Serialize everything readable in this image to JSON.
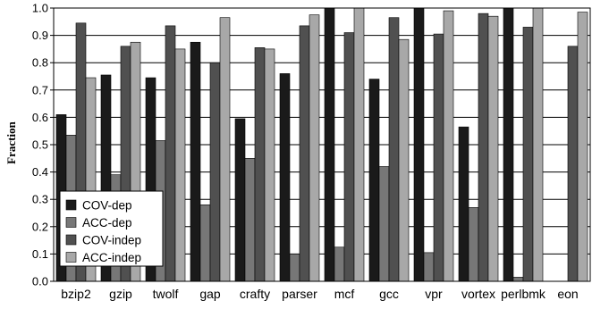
{
  "chart_data": {
    "type": "bar",
    "title": "",
    "xlabel": "",
    "ylabel": "Fraction",
    "ylim": [
      0,
      1
    ],
    "yticks": [
      "0.0",
      "0.1",
      "0.2",
      "0.3",
      "0.4",
      "0.5",
      "0.6",
      "0.7",
      "0.8",
      "0.9",
      "1.0"
    ],
    "grid": true,
    "legend_position": "bottom-left",
    "categories": [
      "bzip2",
      "gzip",
      "twolf",
      "gap",
      "crafty",
      "parser",
      "mcf",
      "gcc",
      "vpr",
      "vortex",
      "perlbmk",
      "eon"
    ],
    "series": [
      {
        "name": "COV-dep",
        "color": "#1a1a1a",
        "values": [
          0.61,
          0.755,
          0.745,
          0.875,
          0.595,
          0.76,
          1.0,
          0.74,
          1.0,
          0.565,
          1.0,
          0.0
        ]
      },
      {
        "name": "ACC-dep",
        "color": "#777777",
        "values": [
          0.535,
          0.39,
          0.515,
          0.28,
          0.45,
          0.1,
          0.125,
          0.42,
          0.105,
          0.27,
          0.015,
          0.0
        ]
      },
      {
        "name": "COV-indep",
        "color": "#505050",
        "values": [
          0.945,
          0.86,
          0.935,
          0.8,
          0.855,
          0.935,
          0.91,
          0.965,
          0.905,
          0.98,
          0.93,
          0.86
        ]
      },
      {
        "name": "ACC-indep",
        "color": "#a8a8a8",
        "values": [
          0.745,
          0.875,
          0.85,
          0.965,
          0.85,
          0.975,
          1.0,
          0.885,
          0.99,
          0.97,
          1.0,
          0.985
        ]
      }
    ]
  }
}
